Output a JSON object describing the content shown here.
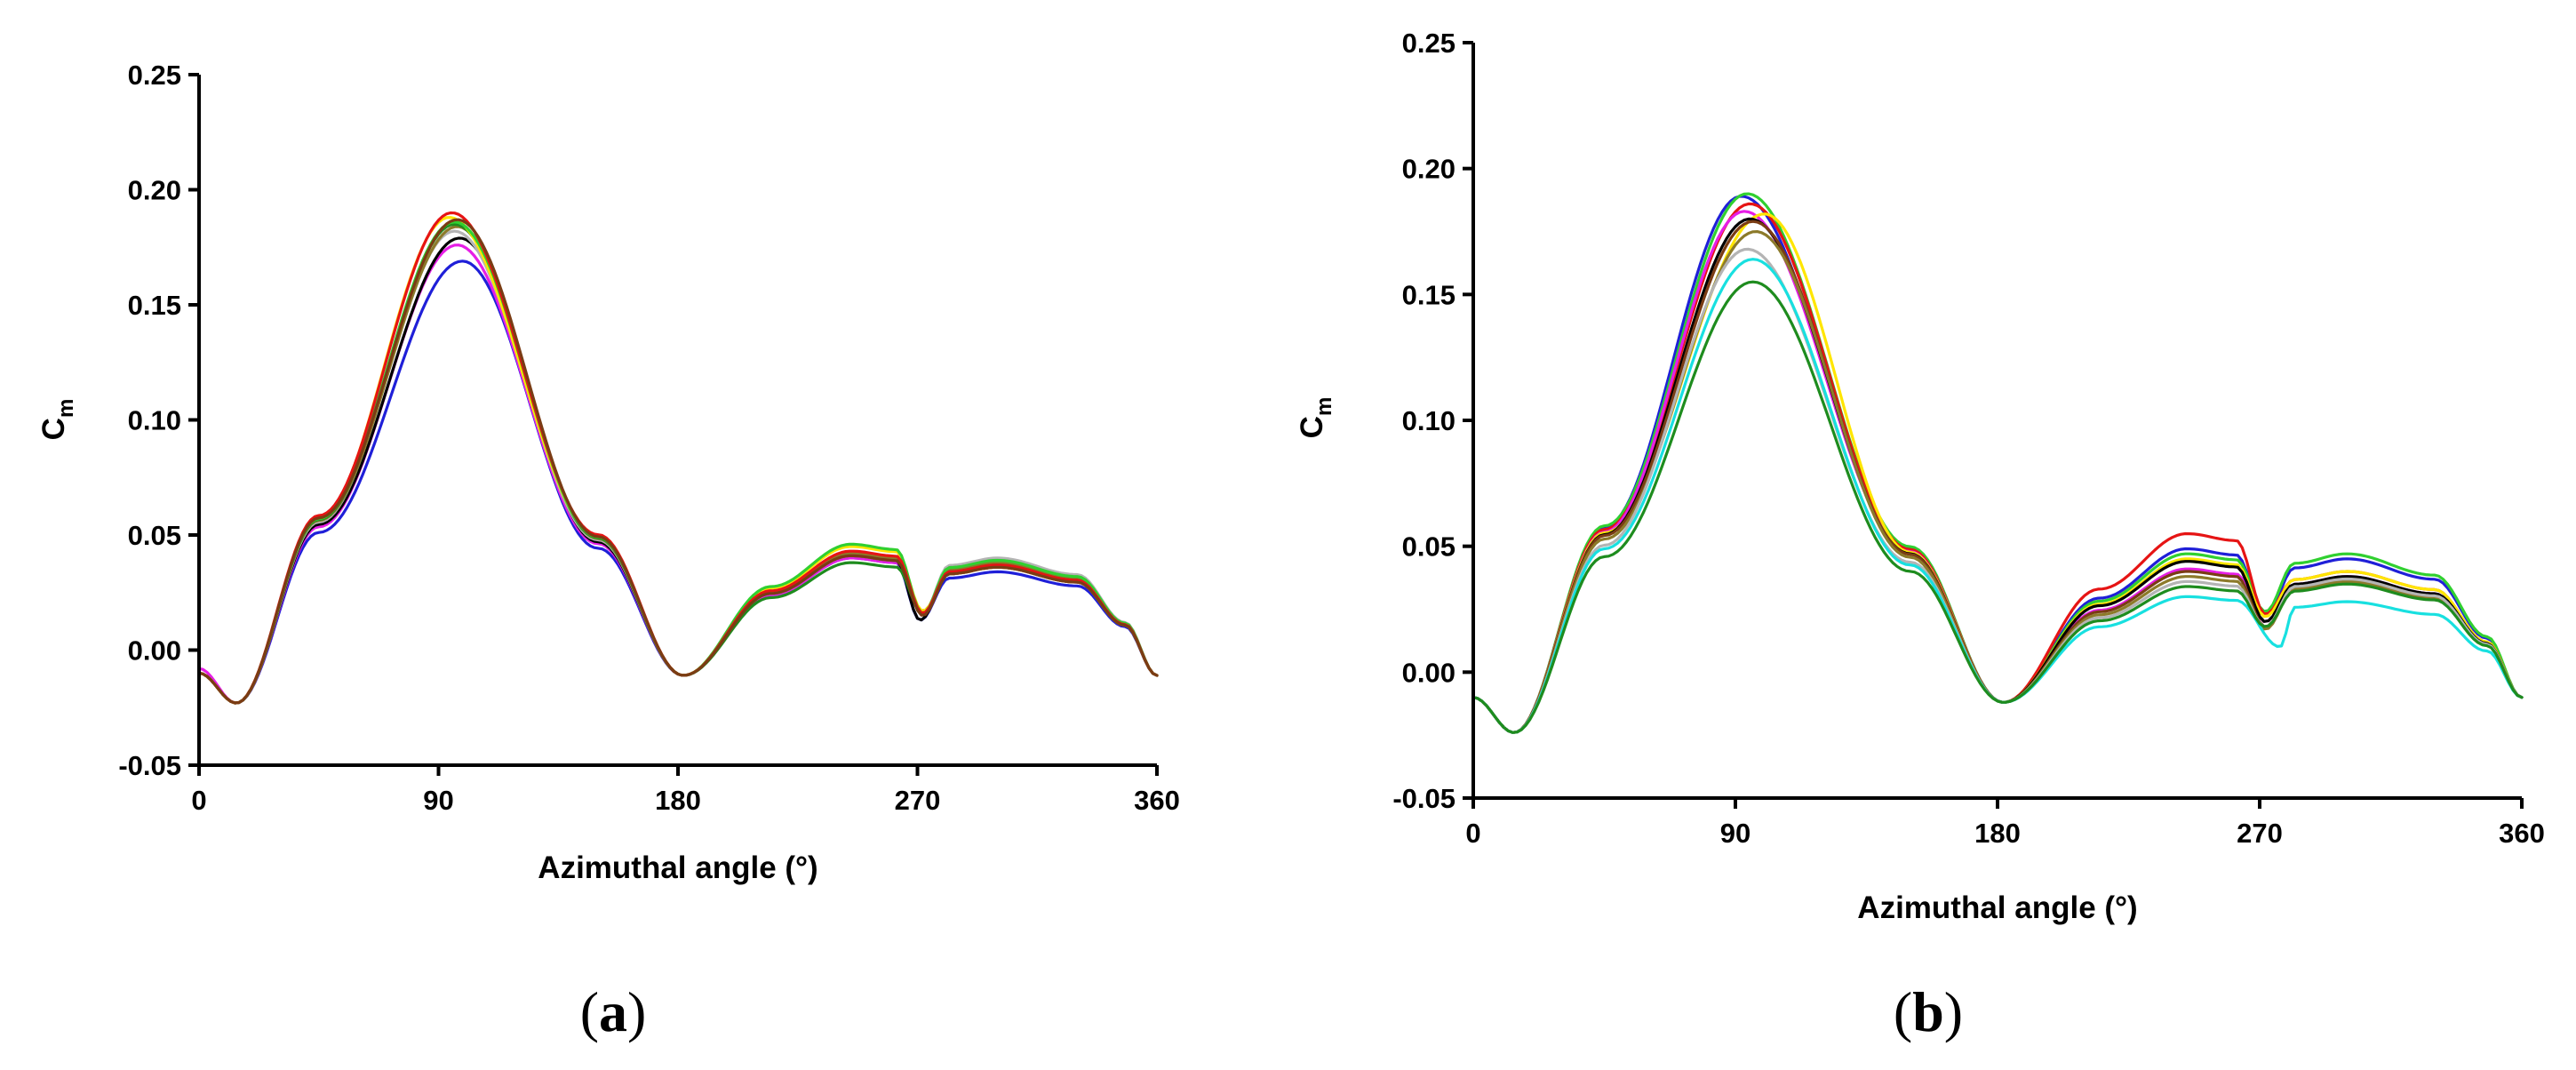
{
  "chart_data": [
    {
      "type": "line",
      "panel_label": "a",
      "xlabel": "Azimuthal angle (°)",
      "ylabel": "C",
      "ylabel_sub": "m",
      "xlim": [
        0,
        360
      ],
      "ylim": [
        -0.05,
        0.25
      ],
      "xticks": [
        "0",
        "90",
        "180",
        "270",
        "360"
      ],
      "yticks": [
        "-0.05",
        "0.00",
        "0.05",
        "0.10",
        "0.15",
        "0.20",
        "0.25"
      ],
      "legend": "none",
      "series": [
        {
          "name": "blue",
          "color": "#1f1fd8",
          "values": [
            -0.01,
            -0.023,
            0.169,
            -0.011,
            0.04,
            0.013,
            0.034,
            -0.011
          ],
          "peak_angle": 99,
          "dip_angle": 271
        },
        {
          "name": "magenta",
          "color": "#e61ee6",
          "values": [
            -0.008,
            -0.023,
            0.176,
            -0.011,
            0.04,
            0.017,
            0.036,
            -0.011
          ],
          "peak_angle": 97,
          "dip_angle": 272
        },
        {
          "name": "black",
          "color": "#000000",
          "values": [
            -0.01,
            -0.023,
            0.179,
            -0.011,
            0.041,
            0.013,
            0.036,
            -0.011
          ],
          "peak_angle": 98,
          "dip_angle": 271
        },
        {
          "name": "gray",
          "color": "#b4b4b4",
          "values": [
            -0.01,
            -0.023,
            0.182,
            -0.011,
            0.041,
            0.016,
            0.04,
            -0.011
          ],
          "peak_angle": 96,
          "dip_angle": 272
        },
        {
          "name": "olive",
          "color": "#8c7a2a",
          "values": [
            -0.01,
            -0.023,
            0.184,
            -0.011,
            0.042,
            0.016,
            0.038,
            -0.011
          ],
          "peak_angle": 97,
          "dip_angle": 272
        },
        {
          "name": "green",
          "color": "#1e8c1e",
          "values": [
            -0.01,
            -0.023,
            0.185,
            -0.011,
            0.038,
            0.016,
            0.037,
            -0.011
          ],
          "peak_angle": 96,
          "dip_angle": 272
        },
        {
          "name": "yellow",
          "color": "#ffe600",
          "values": [
            -0.01,
            -0.023,
            0.188,
            -0.011,
            0.045,
            0.017,
            0.036,
            -0.011
          ],
          "peak_angle": 94,
          "dip_angle": 272
        },
        {
          "name": "lime",
          "color": "#30d030",
          "values": [
            -0.01,
            -0.023,
            0.186,
            -0.011,
            0.046,
            0.016,
            0.039,
            -0.011
          ],
          "peak_angle": 96,
          "dip_angle": 272
        },
        {
          "name": "red",
          "color": "#e61414",
          "values": [
            -0.01,
            -0.023,
            0.19,
            -0.011,
            0.043,
            0.016,
            0.037,
            -0.011
          ],
          "peak_angle": 95,
          "dip_angle": 272
        },
        {
          "name": "brown",
          "color": "#7a3c14",
          "values": [
            -0.01,
            -0.023,
            0.187,
            -0.011,
            0.041,
            0.015,
            0.036,
            -0.011
          ],
          "peak_angle": 97,
          "dip_angle": 272
        }
      ]
    },
    {
      "type": "line",
      "panel_label": "b",
      "xlabel": "Azimuthal angle (°)",
      "ylabel": "C",
      "ylabel_sub": "m",
      "xlim": [
        0,
        360
      ],
      "ylim": [
        -0.05,
        0.25
      ],
      "xticks": [
        "0",
        "90",
        "180",
        "270",
        "360"
      ],
      "yticks": [
        "-0.05",
        "0.00",
        "0.05",
        "0.10",
        "0.15",
        "0.20",
        "0.25"
      ],
      "legend": "none",
      "series": [
        {
          "name": "blue",
          "color": "#1f1fd8",
          "values": [
            -0.01,
            -0.024,
            0.189,
            -0.012,
            0.049,
            0.022,
            0.045,
            -0.01
          ],
          "peak_angle": 92,
          "dip_angle": 272
        },
        {
          "name": "green",
          "color": "#30d030",
          "values": [
            -0.01,
            -0.024,
            0.19,
            -0.012,
            0.047,
            0.024,
            0.047,
            -0.01
          ],
          "peak_angle": 94,
          "dip_angle": 272
        },
        {
          "name": "red",
          "color": "#e61414",
          "values": [
            -0.01,
            -0.024,
            0.186,
            -0.012,
            0.055,
            0.023,
            0.04,
            -0.01
          ],
          "peak_angle": 95,
          "dip_angle": 272
        },
        {
          "name": "magenta",
          "color": "#e61ee6",
          "values": [
            -0.01,
            -0.024,
            0.183,
            -0.012,
            0.041,
            0.02,
            0.038,
            -0.01
          ],
          "peak_angle": 93,
          "dip_angle": 272
        },
        {
          "name": "yellow",
          "color": "#ffe600",
          "values": [
            -0.01,
            -0.024,
            0.182,
            -0.012,
            0.045,
            0.022,
            0.04,
            -0.01
          ],
          "peak_angle": 100,
          "dip_angle": 272
        },
        {
          "name": "black",
          "color": "#000000",
          "values": [
            -0.01,
            -0.024,
            0.18,
            -0.012,
            0.044,
            0.02,
            0.038,
            -0.01
          ],
          "peak_angle": 95,
          "dip_angle": 272
        },
        {
          "name": "brown",
          "color": "#7a3c14",
          "values": [
            -0.01,
            -0.024,
            0.179,
            -0.012,
            0.04,
            0.018,
            0.036,
            -0.01
          ],
          "peak_angle": 96,
          "dip_angle": 272
        },
        {
          "name": "olive",
          "color": "#8c7a2a",
          "values": [
            -0.01,
            -0.024,
            0.175,
            -0.012,
            0.038,
            0.017,
            0.036,
            -0.01
          ],
          "peak_angle": 97,
          "dip_angle": 272
        },
        {
          "name": "gray",
          "color": "#b4b4b4",
          "values": [
            -0.01,
            -0.024,
            0.168,
            -0.012,
            0.036,
            0.018,
            0.037,
            -0.01
          ],
          "peak_angle": 94,
          "dip_angle": 272
        },
        {
          "name": "cyan",
          "color": "#18e0e0",
          "values": [
            -0.01,
            -0.024,
            0.164,
            -0.012,
            0.03,
            0.01,
            0.028,
            -0.01
          ],
          "peak_angle": 96,
          "dip_angle": 277
        },
        {
          "name": "darkgreen",
          "color": "#1e8c1e",
          "values": [
            -0.01,
            -0.024,
            0.155,
            -0.012,
            0.034,
            0.018,
            0.035,
            -0.01
          ],
          "peak_angle": 96,
          "dip_angle": 272
        }
      ]
    }
  ]
}
